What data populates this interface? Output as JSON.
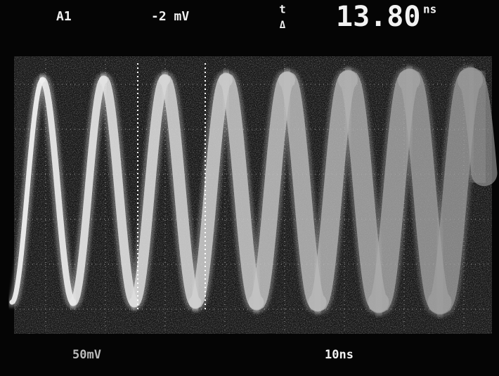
{
  "header": {
    "channel": "A1",
    "trigger_level": "-2 mV",
    "delta_label": "t",
    "delta_symbol": "Δ",
    "reading": "13.80",
    "reading_unit": "ns"
  },
  "footer": {
    "volts_per_div": "50mV",
    "time_per_div": "10ns"
  }
}
